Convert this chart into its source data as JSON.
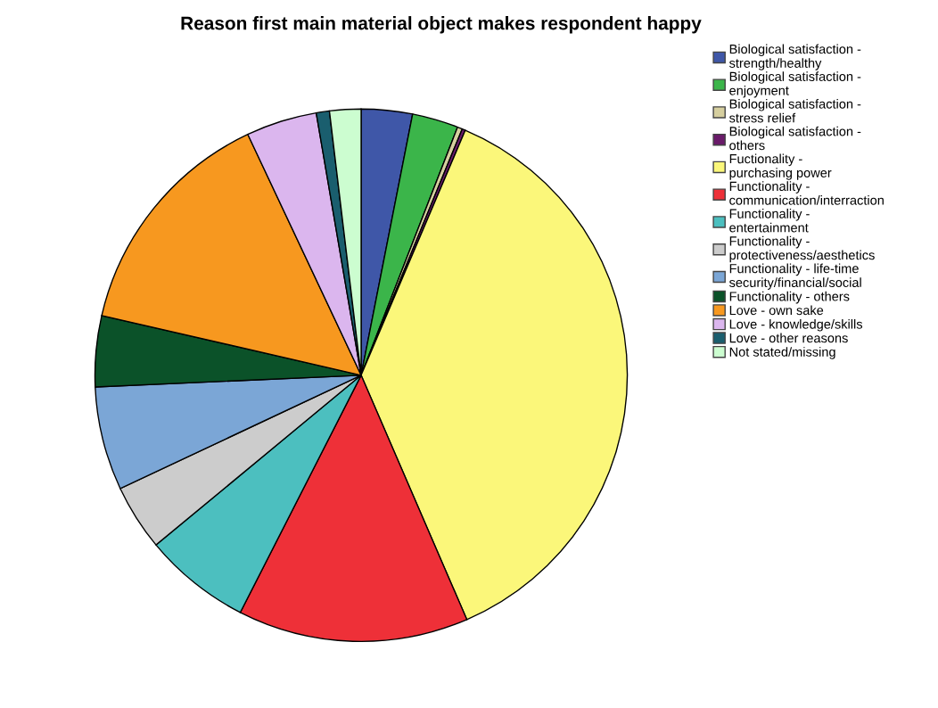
{
  "chart_data": {
    "type": "pie",
    "title": "Reason first main material object makes respondent happy",
    "categories": [
      "Biological satisfaction - strength/healthy",
      "Biological satisfaction - enjoyment",
      "Biological satisfaction - stress relief",
      "Biological satisfaction - others",
      "Fuctionality - purchasing power",
      "Functionality - communication/interraction",
      "Functionality - entertainment",
      "Functionality - protectiveness/aesthetics",
      "Functionality - life-time security/financial/social",
      "Functionality - others",
      "Love - own sake",
      "Love - knowledge/skills",
      "Love - other reasons",
      "Not stated/missing"
    ],
    "values": [
      3.1,
      2.8,
      0.3,
      0.2,
      37.1,
      14,
      6.5,
      4,
      6.3,
      4.3,
      14.4,
      4.3,
      0.8,
      1.9
    ],
    "colors": [
      "#3f57a8",
      "#3bb54a",
      "#d6cf9f",
      "#6a1b6a",
      "#fbf77a",
      "#ee3038",
      "#4cbfbf",
      "#cccccc",
      "#7ba6d6",
      "#0b5229",
      "#f7981f",
      "#dbb6ee",
      "#1a5e6e",
      "#ccfdd0"
    ],
    "legend": "right"
  }
}
